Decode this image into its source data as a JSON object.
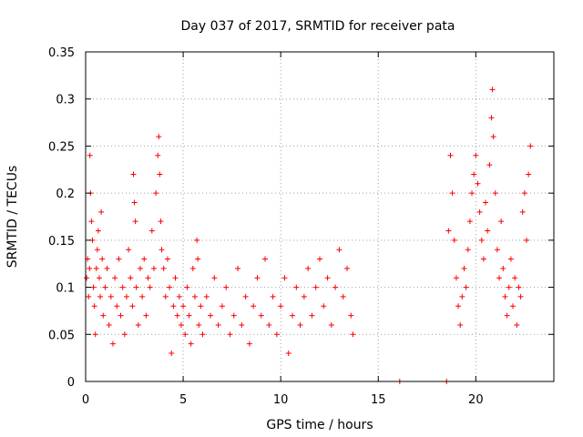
{
  "chart_data": {
    "type": "scatter",
    "title": "Day 037 of 2017, SRMTID for receiver pata",
    "xlabel": "GPS time / hours",
    "ylabel": "SRMTID / TECUs",
    "xlim": [
      0,
      24
    ],
    "ylim": [
      0,
      0.35
    ],
    "xticks": [
      0,
      5,
      10,
      15,
      20
    ],
    "xtick_labels": [
      "0",
      "5",
      "10",
      "15",
      "20"
    ],
    "yticks": [
      0,
      0.05,
      0.1,
      0.15,
      0.2,
      0.25,
      0.3,
      0.35
    ],
    "ytick_labels": [
      "0",
      "0.05",
      "0.1",
      "0.15",
      "0.2",
      "0.25",
      "0.3",
      "0.35"
    ],
    "grid": true,
    "marker": "plus",
    "color": "#ff0000",
    "series": [
      {
        "name": "SRMTID",
        "points": [
          [
            0.05,
            0.11
          ],
          [
            0.1,
            0.13
          ],
          [
            0.15,
            0.09
          ],
          [
            0.2,
            0.12
          ],
          [
            0.22,
            0.24
          ],
          [
            0.25,
            0.2
          ],
          [
            0.3,
            0.17
          ],
          [
            0.35,
            0.15
          ],
          [
            0.4,
            0.1
          ],
          [
            0.45,
            0.08
          ],
          [
            0.5,
            0.05
          ],
          [
            0.55,
            0.12
          ],
          [
            0.6,
            0.14
          ],
          [
            0.65,
            0.16
          ],
          [
            0.7,
            0.11
          ],
          [
            0.75,
            0.09
          ],
          [
            0.8,
            0.18
          ],
          [
            0.85,
            0.13
          ],
          [
            0.9,
            0.07
          ],
          [
            1.0,
            0.1
          ],
          [
            1.1,
            0.12
          ],
          [
            1.2,
            0.06
          ],
          [
            1.3,
            0.09
          ],
          [
            1.4,
            0.04
          ],
          [
            1.5,
            0.11
          ],
          [
            1.6,
            0.08
          ],
          [
            1.7,
            0.13
          ],
          [
            1.8,
            0.07
          ],
          [
            1.9,
            0.1
          ],
          [
            2.0,
            0.05
          ],
          [
            2.1,
            0.09
          ],
          [
            2.2,
            0.14
          ],
          [
            2.3,
            0.11
          ],
          [
            2.4,
            0.08
          ],
          [
            2.45,
            0.22
          ],
          [
            2.5,
            0.19
          ],
          [
            2.55,
            0.17
          ],
          [
            2.6,
            0.1
          ],
          [
            2.7,
            0.06
          ],
          [
            2.8,
            0.12
          ],
          [
            2.9,
            0.09
          ],
          [
            3.0,
            0.13
          ],
          [
            3.1,
            0.07
          ],
          [
            3.2,
            0.11
          ],
          [
            3.3,
            0.1
          ],
          [
            3.4,
            0.16
          ],
          [
            3.5,
            0.12
          ],
          [
            3.6,
            0.2
          ],
          [
            3.7,
            0.24
          ],
          [
            3.75,
            0.26
          ],
          [
            3.8,
            0.22
          ],
          [
            3.85,
            0.17
          ],
          [
            3.9,
            0.14
          ],
          [
            4.0,
            0.12
          ],
          [
            4.1,
            0.09
          ],
          [
            4.2,
            0.13
          ],
          [
            4.3,
            0.1
          ],
          [
            4.4,
            0.03
          ],
          [
            4.5,
            0.08
          ],
          [
            4.6,
            0.11
          ],
          [
            4.7,
            0.07
          ],
          [
            4.8,
            0.09
          ],
          [
            4.9,
            0.06
          ],
          [
            5.0,
            0.08
          ],
          [
            5.1,
            0.05
          ],
          [
            5.2,
            0.1
          ],
          [
            5.3,
            0.07
          ],
          [
            5.4,
            0.04
          ],
          [
            5.5,
            0.12
          ],
          [
            5.6,
            0.09
          ],
          [
            5.7,
            0.15
          ],
          [
            5.75,
            0.13
          ],
          [
            5.8,
            0.06
          ],
          [
            5.9,
            0.08
          ],
          [
            6.0,
            0.05
          ],
          [
            6.2,
            0.09
          ],
          [
            6.4,
            0.07
          ],
          [
            6.6,
            0.11
          ],
          [
            6.8,
            0.06
          ],
          [
            7.0,
            0.08
          ],
          [
            7.2,
            0.1
          ],
          [
            7.4,
            0.05
          ],
          [
            7.6,
            0.07
          ],
          [
            7.8,
            0.12
          ],
          [
            8.0,
            0.06
          ],
          [
            8.2,
            0.09
          ],
          [
            8.4,
            0.04
          ],
          [
            8.6,
            0.08
          ],
          [
            8.8,
            0.11
          ],
          [
            9.0,
            0.07
          ],
          [
            9.2,
            0.13
          ],
          [
            9.4,
            0.06
          ],
          [
            9.6,
            0.09
          ],
          [
            9.8,
            0.05
          ],
          [
            10.0,
            0.08
          ],
          [
            10.2,
            0.11
          ],
          [
            10.4,
            0.03
          ],
          [
            10.6,
            0.07
          ],
          [
            10.8,
            0.1
          ],
          [
            11.0,
            0.06
          ],
          [
            11.2,
            0.09
          ],
          [
            11.4,
            0.12
          ],
          [
            11.6,
            0.07
          ],
          [
            11.8,
            0.1
          ],
          [
            12.0,
            0.13
          ],
          [
            12.2,
            0.08
          ],
          [
            12.4,
            0.11
          ],
          [
            12.6,
            0.06
          ],
          [
            12.8,
            0.1
          ],
          [
            13.0,
            0.14
          ],
          [
            13.2,
            0.09
          ],
          [
            13.4,
            0.12
          ],
          [
            13.6,
            0.07
          ],
          [
            13.7,
            0.05
          ],
          [
            16.1,
            0.0
          ],
          [
            18.5,
            0.0
          ],
          [
            18.6,
            0.16
          ],
          [
            18.7,
            0.24
          ],
          [
            18.8,
            0.2
          ],
          [
            18.9,
            0.15
          ],
          [
            19.0,
            0.11
          ],
          [
            19.1,
            0.08
          ],
          [
            19.2,
            0.06
          ],
          [
            19.3,
            0.09
          ],
          [
            19.4,
            0.12
          ],
          [
            19.5,
            0.1
          ],
          [
            19.6,
            0.14
          ],
          [
            19.7,
            0.17
          ],
          [
            19.8,
            0.2
          ],
          [
            19.9,
            0.22
          ],
          [
            20.0,
            0.24
          ],
          [
            20.1,
            0.21
          ],
          [
            20.2,
            0.18
          ],
          [
            20.3,
            0.15
          ],
          [
            20.4,
            0.13
          ],
          [
            20.5,
            0.19
          ],
          [
            20.6,
            0.16
          ],
          [
            20.7,
            0.23
          ],
          [
            20.8,
            0.28
          ],
          [
            20.85,
            0.31
          ],
          [
            20.9,
            0.26
          ],
          [
            21.0,
            0.2
          ],
          [
            21.1,
            0.14
          ],
          [
            21.2,
            0.11
          ],
          [
            21.3,
            0.17
          ],
          [
            21.4,
            0.12
          ],
          [
            21.5,
            0.09
          ],
          [
            21.6,
            0.07
          ],
          [
            21.7,
            0.1
          ],
          [
            21.8,
            0.13
          ],
          [
            21.9,
            0.08
          ],
          [
            22.0,
            0.11
          ],
          [
            22.1,
            0.06
          ],
          [
            22.2,
            0.1
          ],
          [
            22.3,
            0.09
          ],
          [
            22.4,
            0.18
          ],
          [
            22.5,
            0.2
          ],
          [
            22.6,
            0.15
          ],
          [
            22.7,
            0.22
          ],
          [
            22.8,
            0.25
          ]
        ]
      }
    ]
  }
}
